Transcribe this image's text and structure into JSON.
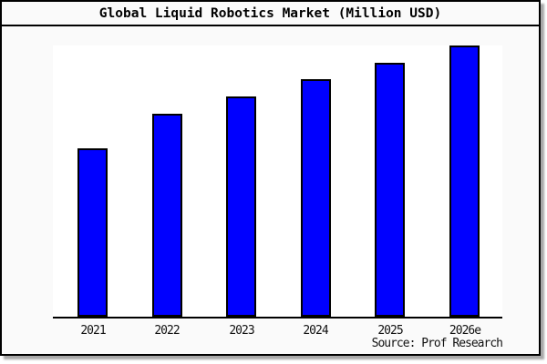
{
  "title": "Global Liquid Robotics Market (Million USD)",
  "source_note": "Source: Prof Research",
  "colors": {
    "bar_fill": "#0000ff",
    "bar_edge": "#000000",
    "figure_bg": "#fafafa",
    "plot_bg": "#ffffff",
    "frame": "#000000",
    "tick_text": "#111111"
  },
  "chart_data": {
    "type": "bar",
    "title": "Global Liquid Robotics Market (Million USD)",
    "categories": [
      "2021",
      "2022",
      "2023",
      "2024",
      "2025",
      "2026e"
    ],
    "values": [
      62.2,
      74.9,
      81.3,
      87.6,
      93.6,
      100
    ],
    "values_note": "y-axis has no tick labels; values estimated from bar heights, normalized so 2026e = 100",
    "xlabel": "",
    "ylabel": "",
    "ylim": [
      0,
      100
    ],
    "grid": false,
    "legend": false,
    "source": "Source: Prof Research"
  }
}
